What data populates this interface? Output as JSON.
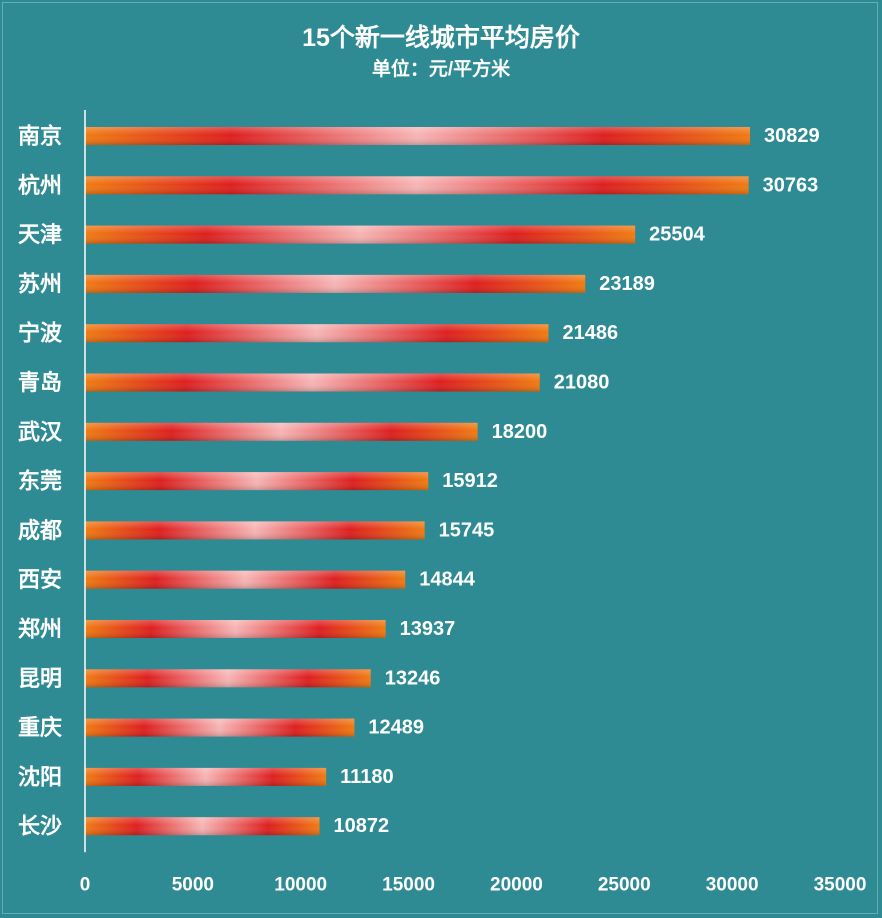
{
  "chart_data": {
    "type": "bar",
    "orientation": "horizontal",
    "title": "15个新一线城市平均房价",
    "subtitle": "单位：元/平方米",
    "categories": [
      "南京",
      "杭州",
      "天津",
      "苏州",
      "宁波",
      "青岛",
      "武汉",
      "东莞",
      "成都",
      "西安",
      "郑州",
      "昆明",
      "重庆",
      "沈阳",
      "长沙"
    ],
    "values": [
      30829,
      30763,
      25504,
      23189,
      21486,
      21080,
      18200,
      15912,
      15745,
      14844,
      13937,
      13246,
      12489,
      11180,
      10872
    ],
    "xlim": [
      0,
      35000
    ],
    "xticks": [
      0,
      5000,
      10000,
      15000,
      20000,
      25000,
      30000,
      35000
    ],
    "grid": false,
    "colors": {
      "background": "#2e8b93",
      "bar_orange": "#f07b12",
      "bar_red": "#de1f1f",
      "bar_pink": "#f7b5b5",
      "axis": "#ffffff",
      "text": "#ffffff"
    }
  }
}
